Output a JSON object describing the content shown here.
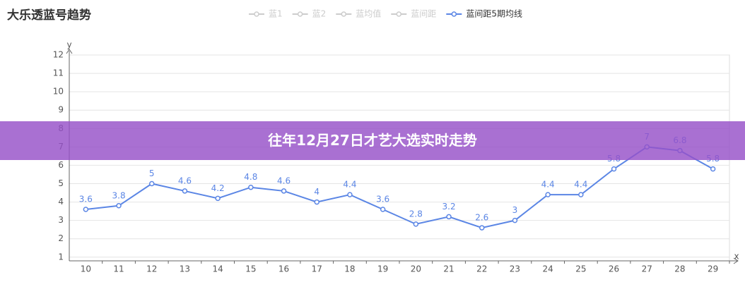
{
  "chart_data": {
    "type": "line",
    "title": "大乐透蓝号趋势",
    "inactive_legend": [
      "蓝1",
      "蓝2",
      "蓝均值",
      "蓝间距"
    ],
    "x_label": "x",
    "y_label": "y",
    "categories": [
      "10",
      "11",
      "12",
      "13",
      "14",
      "15",
      "16",
      "17",
      "18",
      "19",
      "20",
      "21",
      "22",
      "23",
      "24",
      "25",
      "26",
      "27",
      "28",
      "29"
    ],
    "series": [
      {
        "name": "蓝间距5期均线",
        "color": "#5b86e5",
        "values": [
          3.6,
          3.8,
          5,
          4.6,
          4.2,
          4.8,
          4.6,
          4,
          4.4,
          3.6,
          2.8,
          3.2,
          2.6,
          3,
          4.4,
          4.4,
          5.8,
          7,
          6.8,
          5.8
        ]
      }
    ],
    "ylim": [
      0.8,
      12
    ],
    "yticks": [
      1,
      2,
      3,
      4,
      5,
      6,
      7,
      8,
      9,
      10,
      11,
      12
    ],
    "grid": true
  },
  "overlay": {
    "text": "往年12月27日才艺大选实时走势"
  }
}
